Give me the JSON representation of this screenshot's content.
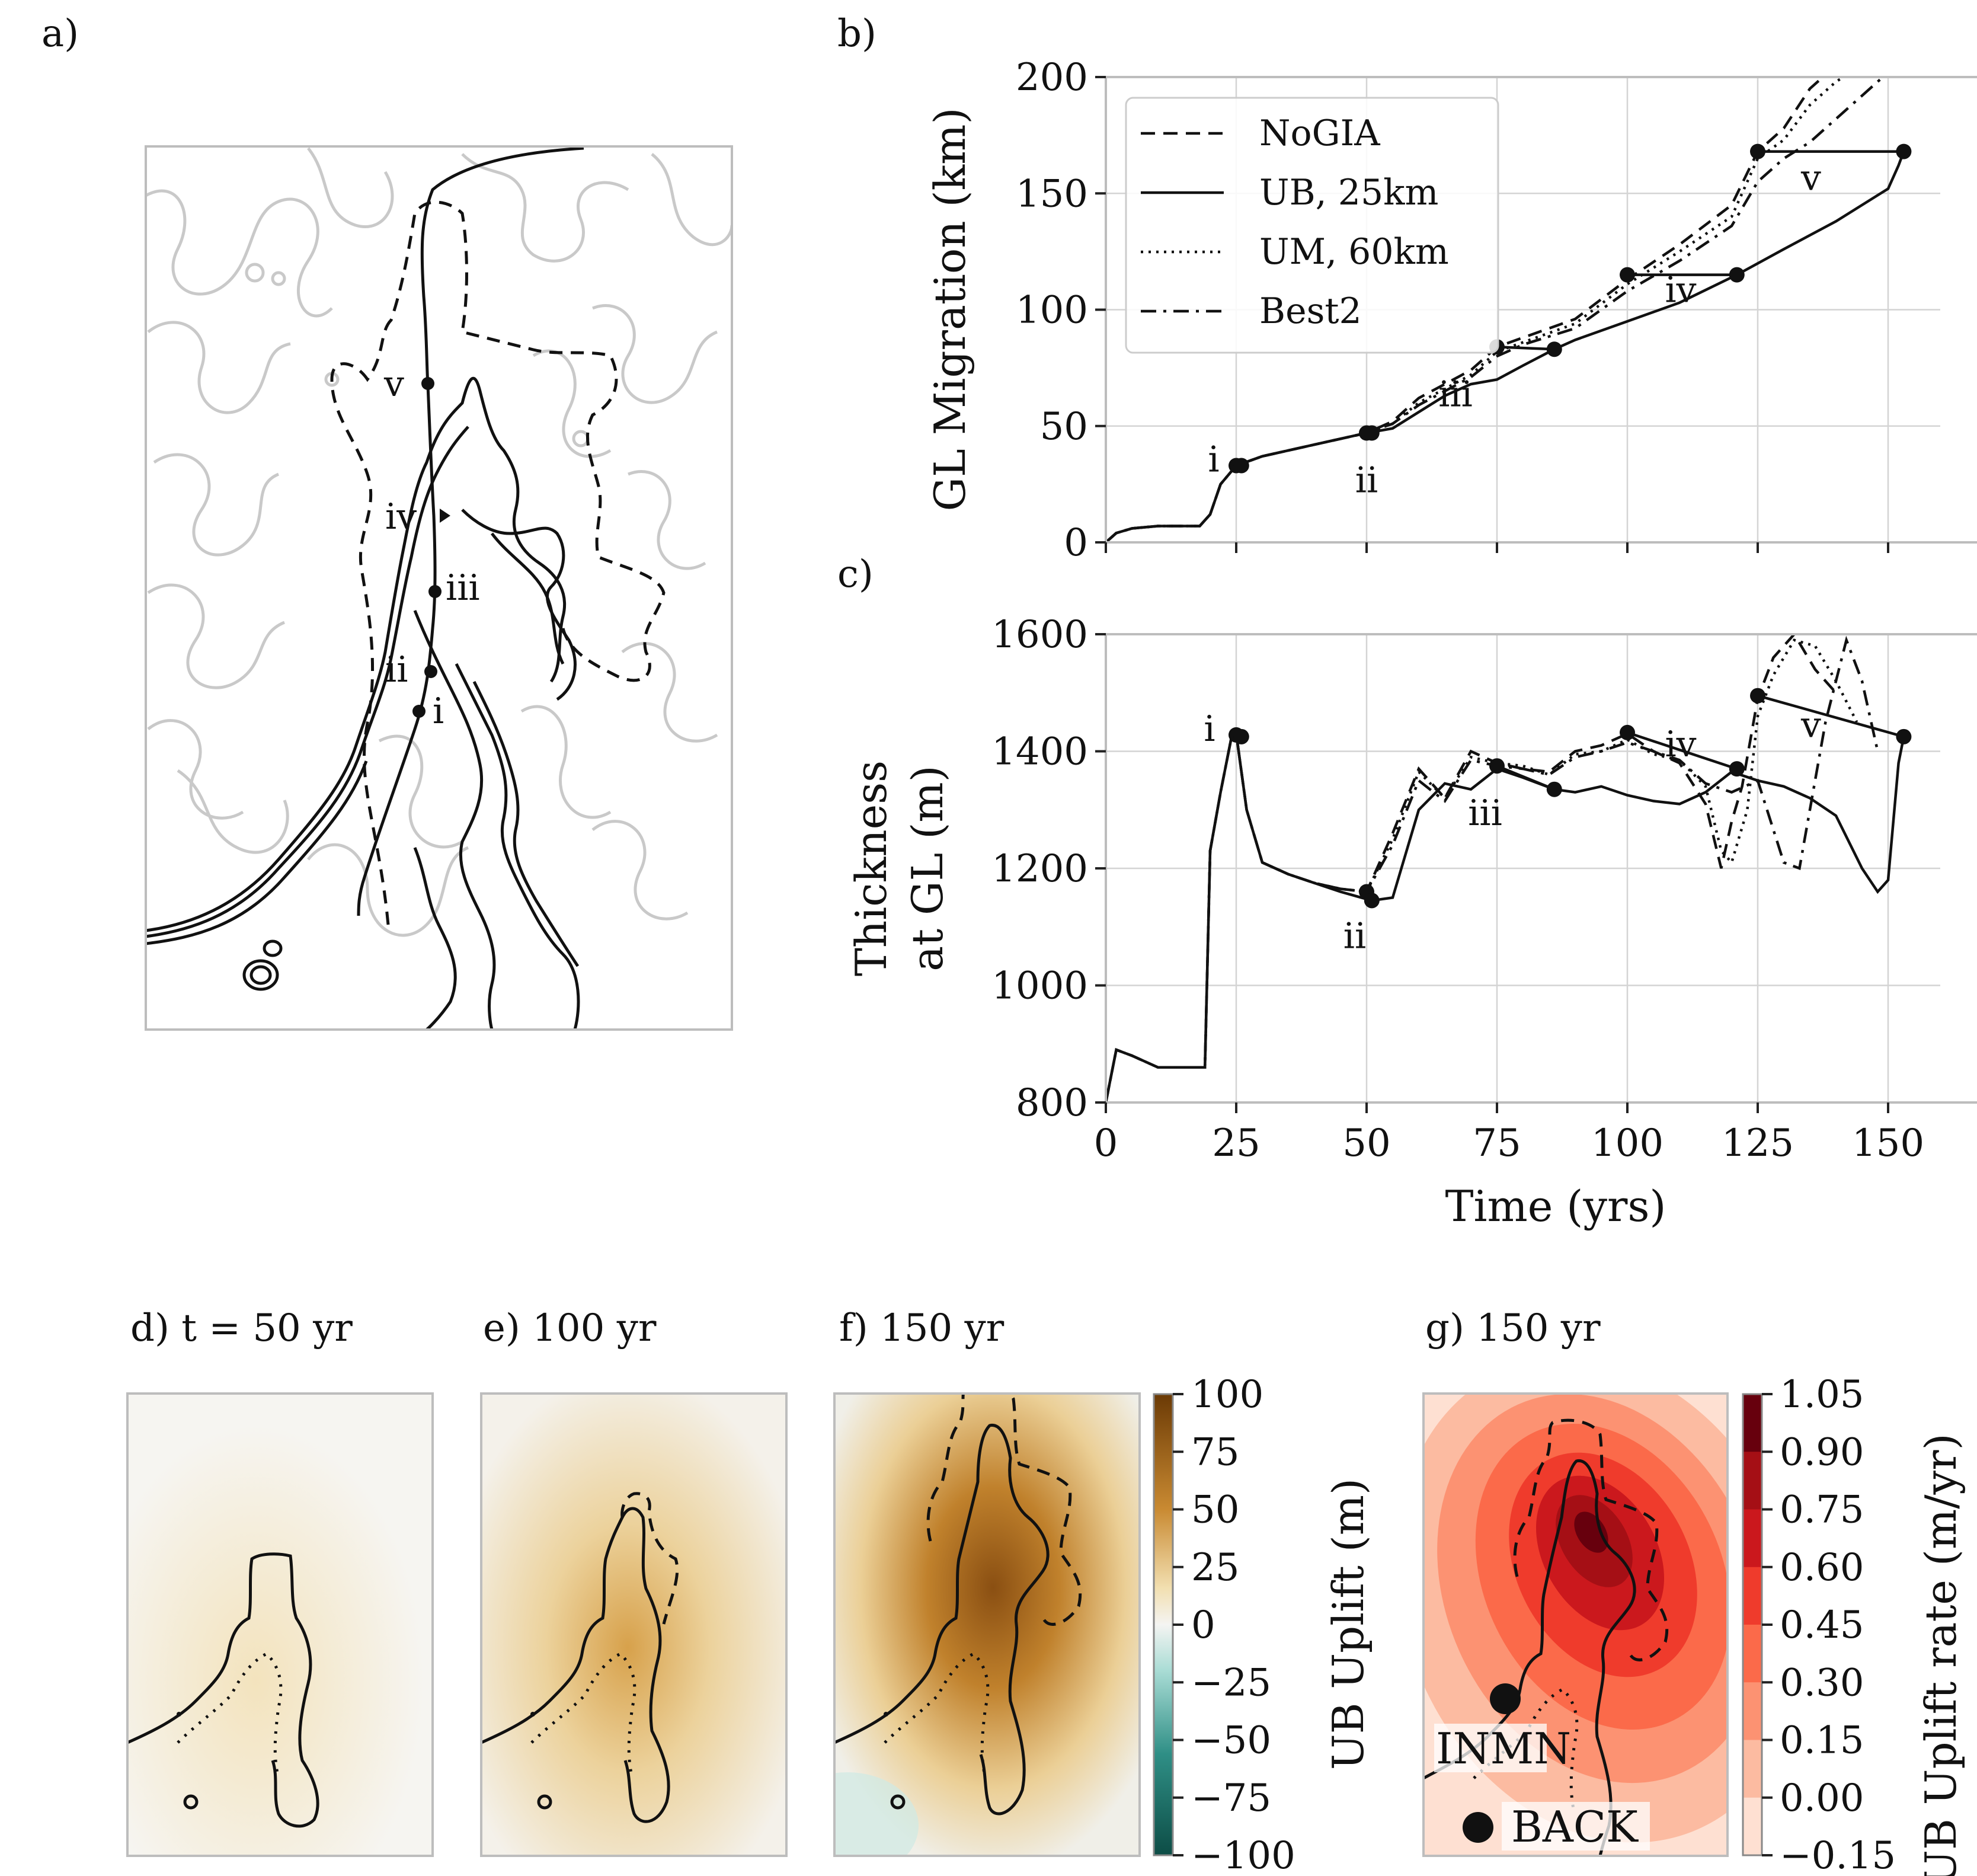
{
  "panel_labels": {
    "a": "a)",
    "b": "b)",
    "c": "c)",
    "d": "d) t = 50 yr",
    "e": "e) 100 yr",
    "f": "f) 150 yr",
    "g": "g) 150 yr"
  },
  "map_annotations": {
    "i": "i",
    "ii": "ii",
    "iii": "iii",
    "iv": "iv",
    "v": "v"
  },
  "site_labels": {
    "inmn": "INMN",
    "back": "BACK"
  },
  "colorbar_uplift": {
    "label": "UB Uplift (m)",
    "ticks": [
      "100",
      "75",
      "50",
      "25",
      "0",
      "−25",
      "−50",
      "−75",
      "−100"
    ],
    "colors": [
      "#6b3a05",
      "#c98a32",
      "#f2dfb0",
      "#f4f4f2",
      "#a9dcd5",
      "#2f8f86",
      "#0d4d46"
    ]
  },
  "colorbar_rate": {
    "label": "UB Uplift rate (m/yr)",
    "ticks": [
      "1.05",
      "0.90",
      "0.75",
      "0.60",
      "0.45",
      "0.30",
      "0.15",
      "0.00",
      "−0.15"
    ],
    "colors": [
      "#67000d",
      "#a50f15",
      "#cb181d",
      "#ef3b2c",
      "#fb6a4a",
      "#fc9272",
      "#fcbba1",
      "#fee0d2"
    ]
  },
  "chart_data": [
    {
      "type": "line",
      "id": "b",
      "ylabel": "GL Migration (km)",
      "xlim": [
        0,
        160
      ],
      "ylim": [
        0,
        200
      ],
      "yticks": [
        "0",
        "50",
        "100",
        "150",
        "200"
      ],
      "legend_position": "top-left",
      "grid": true,
      "series": [
        {
          "name": "NoGIA",
          "style": "dashed",
          "x": [
            0,
            2,
            5,
            10,
            18,
            20,
            22,
            25,
            30,
            40,
            50,
            55,
            60,
            70,
            75,
            80,
            90,
            100,
            110,
            120,
            125,
            130,
            135,
            140
          ],
          "y": [
            0,
            4,
            6,
            7,
            7,
            12,
            25,
            33,
            37,
            42,
            47,
            52,
            62,
            74,
            84,
            88,
            96,
            113,
            128,
            145,
            168,
            178,
            195,
            205
          ]
        },
        {
          "name": "UB, 25km",
          "style": "solid",
          "x": [
            0,
            2,
            5,
            10,
            18,
            20,
            22,
            25,
            30,
            40,
            50,
            55,
            60,
            65,
            70,
            75,
            80,
            86,
            90,
            100,
            110,
            121,
            130,
            140,
            150,
            152,
            153
          ],
          "y": [
            0,
            4,
            6,
            7,
            7,
            12,
            25,
            33,
            37,
            42,
            47,
            49,
            56,
            63,
            68,
            70,
            76,
            83,
            87,
            95,
            103,
            115,
            126,
            138,
            152,
            162,
            168
          ]
        },
        {
          "name": "UM, 60km",
          "style": "dotted",
          "x": [
            0,
            2,
            5,
            10,
            18,
            20,
            22,
            25,
            30,
            40,
            50,
            55,
            60,
            70,
            75,
            80,
            90,
            100,
            110,
            120,
            125,
            130,
            135,
            140,
            145
          ],
          "y": [
            0,
            4,
            6,
            7,
            7,
            12,
            25,
            33,
            37,
            42,
            47,
            51,
            60,
            72,
            82,
            86,
            94,
            111,
            125,
            140,
            165,
            173,
            188,
            198,
            205
          ]
        },
        {
          "name": "Best2",
          "style": "dashdot",
          "x": [
            0,
            2,
            5,
            10,
            18,
            20,
            22,
            25,
            30,
            40,
            50,
            55,
            60,
            70,
            75,
            80,
            90,
            100,
            110,
            120,
            125,
            130,
            135,
            140,
            145,
            150
          ],
          "y": [
            0,
            4,
            6,
            7,
            7,
            12,
            25,
            33,
            37,
            42,
            47,
            51,
            59,
            71,
            80,
            85,
            92,
            108,
            121,
            136,
            155,
            165,
            172,
            182,
            192,
            202
          ]
        }
      ],
      "markers": [
        {
          "label": "i",
          "x1": 25,
          "y1": 33,
          "x2": 26,
          "y2": 33
        },
        {
          "label": "ii",
          "x1": 50,
          "y1": 47,
          "x2": 51,
          "y2": 47
        },
        {
          "label": "iii",
          "x1": 75,
          "y1": 84,
          "x2": 86,
          "y2": 83
        },
        {
          "label": "iv",
          "x1": 100,
          "y1": 115,
          "x2": 121,
          "y2": 115
        },
        {
          "label": "v",
          "x1": 125,
          "y1": 168,
          "x2": 153,
          "y2": 168
        }
      ]
    },
    {
      "type": "line",
      "id": "c",
      "xlabel": "Time (yrs)",
      "ylabel": "Thickness at GL (m)",
      "ylabel_lines": [
        "Thickness",
        "at GL (m)"
      ],
      "xlim": [
        0,
        160
      ],
      "ylim": [
        800,
        1600
      ],
      "xticks": [
        "0",
        "25",
        "50",
        "75",
        "100",
        "125",
        "150"
      ],
      "yticks": [
        "800",
        "1000",
        "1200",
        "1400",
        "1600"
      ],
      "grid": true,
      "series": [
        {
          "name": "NoGIA",
          "style": "dashed",
          "x": [
            0,
            2,
            5,
            10,
            19,
            20,
            22,
            24,
            25,
            27,
            30,
            35,
            40,
            45,
            50,
            55,
            60,
            65,
            70,
            75,
            80,
            85,
            90,
            95,
            100,
            105,
            110,
            115,
            118,
            120,
            122,
            125,
            128,
            132,
            136,
            140
          ],
          "y": [
            800,
            890,
            880,
            860,
            860,
            1230,
            1330,
            1420,
            1430,
            1300,
            1210,
            1190,
            1175,
            1165,
            1160,
            1260,
            1370,
            1320,
            1400,
            1380,
            1370,
            1365,
            1400,
            1410,
            1430,
            1400,
            1380,
            1310,
            1200,
            1280,
            1340,
            1490,
            1560,
            1600,
            1540,
            1500
          ]
        },
        {
          "name": "UB, 25km",
          "style": "solid",
          "x": [
            0,
            2,
            5,
            10,
            19,
            20,
            22,
            24,
            25,
            27,
            30,
            35,
            40,
            45,
            51,
            55,
            60,
            65,
            70,
            75,
            80,
            86,
            90,
            95,
            100,
            105,
            110,
            115,
            120,
            125,
            130,
            135,
            140,
            145,
            148,
            150,
            152,
            153
          ],
          "y": [
            800,
            890,
            880,
            860,
            860,
            1230,
            1330,
            1420,
            1430,
            1300,
            1210,
            1190,
            1175,
            1160,
            1145,
            1150,
            1300,
            1345,
            1335,
            1370,
            1355,
            1335,
            1330,
            1340,
            1325,
            1315,
            1310,
            1330,
            1365,
            1350,
            1340,
            1320,
            1290,
            1200,
            1160,
            1180,
            1380,
            1425
          ]
        },
        {
          "name": "UM, 60km",
          "style": "dotted",
          "x": [
            0,
            2,
            5,
            10,
            19,
            20,
            22,
            24,
            25,
            27,
            30,
            35,
            40,
            45,
            50,
            55,
            60,
            65,
            70,
            75,
            80,
            85,
            90,
            95,
            100,
            105,
            110,
            115,
            118,
            120,
            123,
            125,
            128,
            132,
            136,
            140,
            144
          ],
          "y": [
            800,
            890,
            880,
            860,
            860,
            1230,
            1330,
            1420,
            1430,
            1300,
            1210,
            1190,
            1175,
            1165,
            1160,
            1250,
            1365,
            1320,
            1390,
            1380,
            1375,
            1360,
            1395,
            1400,
            1420,
            1395,
            1385,
            1340,
            1230,
            1210,
            1300,
            1460,
            1530,
            1590,
            1580,
            1520,
            1450
          ]
        },
        {
          "name": "Best2",
          "style": "dashdot",
          "x": [
            0,
            2,
            5,
            10,
            19,
            20,
            22,
            24,
            25,
            27,
            30,
            35,
            40,
            45,
            50,
            55,
            60,
            65,
            70,
            75,
            80,
            85,
            90,
            95,
            100,
            105,
            110,
            115,
            120,
            125,
            130,
            133,
            135,
            138,
            142,
            145,
            148
          ],
          "y": [
            800,
            890,
            880,
            860,
            860,
            1230,
            1330,
            1420,
            1430,
            1300,
            1210,
            1190,
            1175,
            1165,
            1160,
            1240,
            1350,
            1315,
            1385,
            1375,
            1370,
            1360,
            1390,
            1400,
            1415,
            1400,
            1385,
            1345,
            1330,
            1350,
            1210,
            1200,
            1300,
            1450,
            1590,
            1520,
            1400
          ]
        }
      ],
      "markers": [
        {
          "label": "i",
          "x1": 25,
          "y1": 1428,
          "x2": 26,
          "y2": 1425
        },
        {
          "label": "ii",
          "x1": 50,
          "y1": 1160,
          "x2": 51,
          "y2": 1145
        },
        {
          "label": "iii",
          "x1": 75,
          "y1": 1375,
          "x2": 86,
          "y2": 1335
        },
        {
          "label": "iv",
          "x1": 100,
          "y1": 1432,
          "x2": 121,
          "y2": 1370
        },
        {
          "label": "v",
          "x1": 125,
          "y1": 1495,
          "x2": 153,
          "y2": 1425
        }
      ]
    }
  ]
}
